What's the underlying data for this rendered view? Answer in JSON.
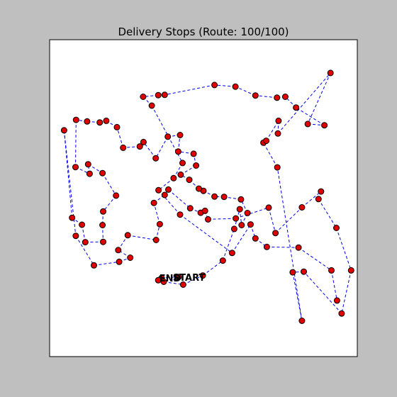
{
  "chart_data": {
    "type": "scatter",
    "title": "Delivery Stops (Route: 100/100)",
    "xlabel": "",
    "ylabel": "",
    "xlim": [
      0,
      100
    ],
    "ylim": [
      0,
      100
    ],
    "axis_ticks_visible": false,
    "grid": false,
    "start_label": "START",
    "end_label": "END",
    "colors": {
      "figure_background": "#bfbfbf",
      "axes_background": "#ffffff",
      "point_fill": "#e00000",
      "point_edge": "#000000",
      "route_line": "#0000ee"
    },
    "points": [
      [
        41.9,
        25.1
      ],
      [
        36.4,
        24.8
      ],
      [
        35.3,
        24.1
      ],
      [
        37.1,
        23.6
      ],
      [
        43.4,
        22.7
      ],
      [
        49.8,
        25.6
      ],
      [
        56.3,
        30.3
      ],
      [
        60.0,
        40.3
      ],
      [
        61.8,
        46.5
      ],
      [
        62.4,
        41.5
      ],
      [
        64.3,
        45.3
      ],
      [
        62.2,
        49.6
      ],
      [
        56.7,
        50.4
      ],
      [
        53.6,
        50.5
      ],
      [
        50.0,
        52.3
      ],
      [
        48.5,
        53.0
      ],
      [
        45.4,
        55.8
      ],
      [
        42.6,
        57.4
      ],
      [
        47.6,
        60.3
      ],
      [
        46.8,
        64.0
      ],
      [
        41.8,
        64.7
      ],
      [
        42.4,
        69.9
      ],
      [
        38.4,
        69.4
      ],
      [
        34.5,
        62.6
      ],
      [
        30.5,
        67.7
      ],
      [
        29.3,
        66.3
      ],
      [
        23.9,
        65.9
      ],
      [
        21.9,
        72.4
      ],
      [
        18.4,
        74.4
      ],
      [
        16.3,
        73.9
      ],
      [
        12.2,
        74.2
      ],
      [
        8.6,
        74.7
      ],
      [
        8.4,
        59.8
      ],
      [
        13.0,
        57.7
      ],
      [
        12.5,
        60.7
      ],
      [
        17.2,
        57.9
      ],
      [
        21.6,
        50.8
      ],
      [
        17.4,
        45.8
      ],
      [
        17.2,
        41.5
      ],
      [
        17.4,
        36.2
      ],
      [
        11.6,
        36.1
      ],
      [
        10.5,
        41.6
      ],
      [
        7.3,
        43.8
      ],
      [
        4.7,
        71.4
      ],
      [
        8.5,
        38.1
      ],
      [
        14.4,
        28.8
      ],
      [
        22.6,
        29.9
      ],
      [
        26.2,
        31.2
      ],
      [
        22.3,
        33.6
      ],
      [
        25.4,
        38.3
      ],
      [
        34.6,
        36.8
      ],
      [
        35.8,
        41.8
      ],
      [
        33.9,
        48.5
      ],
      [
        37.4,
        51.0
      ],
      [
        38.6,
        52.7
      ],
      [
        45.7,
        46.8
      ],
      [
        49.1,
        45.4
      ],
      [
        50.5,
        46.0
      ],
      [
        51.5,
        43.3
      ],
      [
        60.5,
        43.6
      ],
      [
        71.2,
        47.0
      ],
      [
        73.4,
        39.0
      ],
      [
        82.0,
        47.1
      ],
      [
        88.2,
        52.1
      ],
      [
        87.4,
        49.7
      ],
      [
        93.2,
        40.6
      ],
      [
        98.0,
        27.2
      ],
      [
        94.9,
        13.6
      ],
      [
        82.6,
        26.8
      ],
      [
        79.0,
        26.6
      ],
      [
        82.0,
        11.3
      ],
      [
        74.0,
        59.7
      ],
      [
        69.5,
        67.5
      ],
      [
        70.4,
        68.1
      ],
      [
        74.4,
        74.4
      ],
      [
        74.2,
        70.4
      ],
      [
        91.3,
        89.5
      ],
      [
        83.9,
        73.4
      ],
      [
        89.3,
        73.0
      ],
      [
        80.1,
        78.6
      ],
      [
        76.6,
        82.0
      ],
      [
        73.9,
        81.7
      ],
      [
        66.9,
        82.4
      ],
      [
        60.4,
        85.2
      ],
      [
        53.6,
        85.7
      ],
      [
        37.4,
        82.6
      ],
      [
        35.3,
        82.5
      ],
      [
        30.4,
        82.0
      ],
      [
        33.2,
        79.2
      ],
      [
        43.2,
        61.1
      ],
      [
        40.3,
        56.3
      ],
      [
        35.4,
        52.5
      ],
      [
        42.4,
        44.8
      ],
      [
        59.3,
        32.7
      ],
      [
        65.3,
        41.7
      ],
      [
        66.9,
        37.3
      ],
      [
        70.6,
        34.6
      ],
      [
        80.9,
        34.4
      ],
      [
        91.6,
        27.2
      ],
      [
        93.4,
        17.7
      ]
    ]
  }
}
